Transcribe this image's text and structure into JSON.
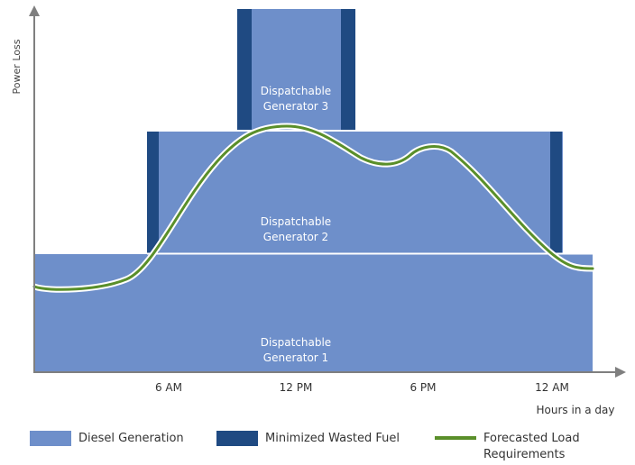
{
  "colors": {
    "diesel": "#6e8fca",
    "wasted": "#1f4a82",
    "load": "#5a8f2a",
    "axis": "#7f7f7f"
  },
  "axes": {
    "y_label": "Power Loss",
    "x_label": "Hours in a day",
    "x_ticks": [
      "6 AM",
      "12 PM",
      "6 PM",
      "12 AM"
    ]
  },
  "generators": [
    {
      "id": 1,
      "line1": "Dispatchable",
      "line2": "Generator 1"
    },
    {
      "id": 2,
      "line1": "Dispatchable",
      "line2": "Generator 2"
    },
    {
      "id": 3,
      "line1": "Dispatchable",
      "line2": "Generator 3"
    }
  ],
  "legend": [
    {
      "key": "diesel",
      "label": "Diesel Generation"
    },
    {
      "key": "wasted",
      "label": "Minimized Wasted Fuel"
    },
    {
      "key": "load",
      "label_line1": "Forecasted Load",
      "label_line2": "Requirements"
    }
  ]
}
